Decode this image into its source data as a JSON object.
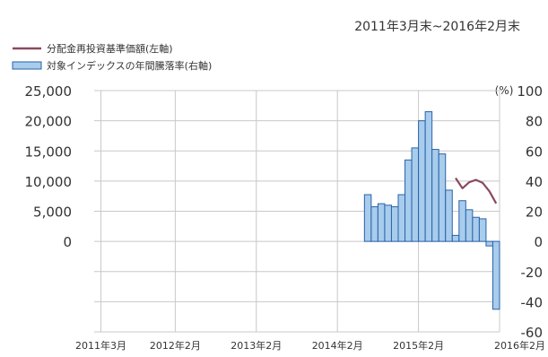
{
  "chart_data": {
    "type": "bar",
    "period_note": "2011年3月末~2016年2月末",
    "legend": {
      "line_label": "分配金再投資基準価額(左軸)",
      "bar_label": "対象インデックスの年間騰落率(右軸)"
    },
    "right_axis_unit": "(%)",
    "left_axis": {
      "range": [
        -15000,
        25000
      ],
      "tick_values": [
        0,
        5000,
        10000,
        15000,
        20000,
        25000
      ],
      "tick_labels": [
        "0",
        "5,000",
        "10,000",
        "15,000",
        "20,000",
        "25,000"
      ]
    },
    "right_axis": {
      "range": [
        -60,
        100
      ],
      "tick_values": [
        -60,
        -40,
        -20,
        0,
        20,
        40,
        60,
        80,
        100
      ],
      "tick_labels": [
        "-60",
        "-40",
        "-20",
        "0",
        "20",
        "40",
        "60",
        "80",
        "100"
      ]
    },
    "x_axis": {
      "range": [
        0,
        59
      ],
      "tick_positions": [
        0,
        11,
        23,
        35,
        47,
        59
      ],
      "tick_labels": [
        "2011年3月",
        "2012年2月",
        "2013年2月",
        "2014年2月",
        "2015年2月",
        "2016年2月"
      ]
    },
    "grid": true,
    "colors": {
      "bar_fill": "#a8ccec",
      "bar_stroke": "#2a62a8",
      "line": "#8a4a5e",
      "grid": "#c8c8c8"
    },
    "series": [
      {
        "axis": "right",
        "x": [
          40,
          41,
          42,
          43,
          44,
          45,
          46,
          47,
          48,
          49,
          50,
          51,
          52,
          53,
          54,
          55,
          56,
          57,
          58,
          59
        ],
        "values": [
          31,
          23,
          25,
          24,
          23,
          31,
          54,
          62,
          80,
          86,
          61,
          58,
          34,
          4,
          27,
          21,
          16,
          15,
          -3,
          -45
        ]
      },
      {
        "axis": "left",
        "x": [
          53,
          54,
          55,
          56,
          57,
          58,
          59
        ],
        "values": [
          10500,
          8800,
          9800,
          10200,
          9700,
          8300,
          6300
        ]
      }
    ]
  }
}
